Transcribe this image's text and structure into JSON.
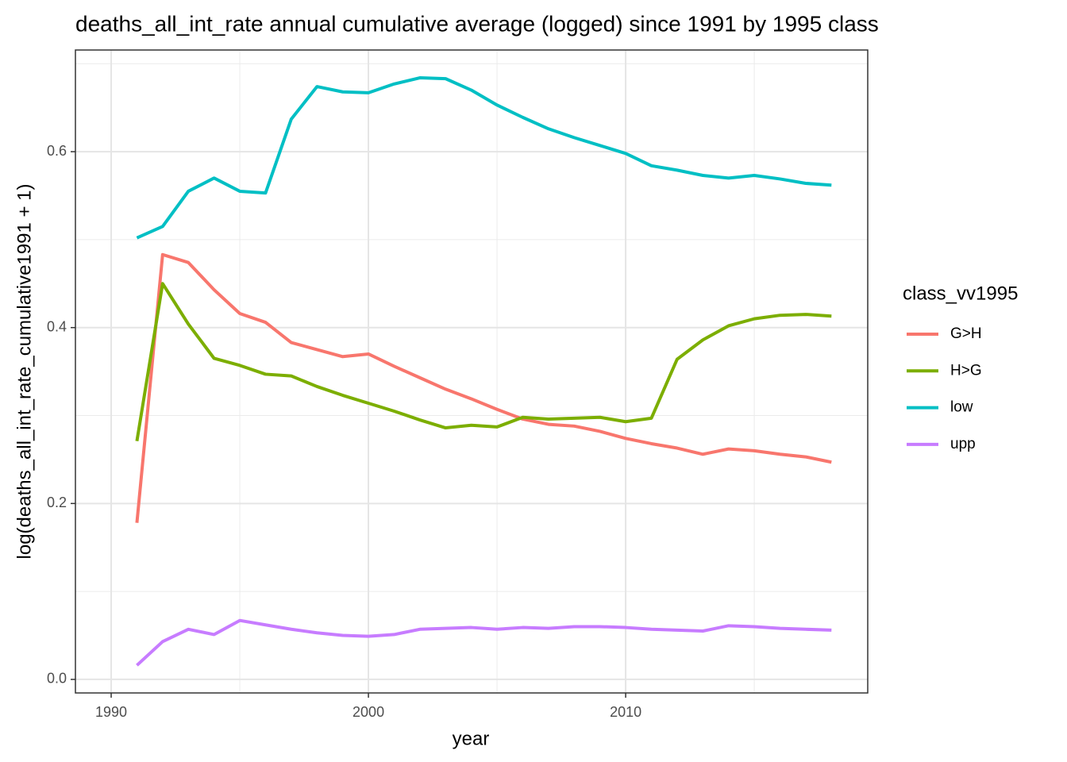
{
  "chart_data": {
    "type": "line",
    "title": "deaths_all_int_rate annual cumulative average (logged) since 1991 by 1995 class",
    "x_label": "year",
    "y_label": "log(deaths_all_int_rate_cumulative1991 + 1)",
    "legend_title": "class_vv1995",
    "legend_position": "right",
    "x": [
      1991,
      1992,
      1993,
      1994,
      1995,
      1996,
      1997,
      1998,
      1999,
      2000,
      2001,
      2002,
      2003,
      2004,
      2005,
      2006,
      2007,
      2008,
      2009,
      2010,
      2011,
      2012,
      2013,
      2014,
      2015,
      2016,
      2017,
      2018
    ],
    "series": [
      {
        "name": "G>H",
        "color": "#F8766D",
        "values": [
          0.178,
          0.483,
          0.474,
          0.443,
          0.416,
          0.406,
          0.383,
          0.375,
          0.367,
          0.37,
          0.356,
          0.343,
          0.33,
          0.319,
          0.307,
          0.296,
          0.29,
          0.288,
          0.282,
          0.274,
          0.268,
          0.263,
          0.256,
          0.262,
          0.26,
          0.256,
          0.253,
          0.247
        ]
      },
      {
        "name": "H>G",
        "color": "#7CAE00",
        "values": [
          0.271,
          0.45,
          0.404,
          0.365,
          0.357,
          0.347,
          0.345,
          0.333,
          0.323,
          0.314,
          0.305,
          0.295,
          0.286,
          0.289,
          0.287,
          0.298,
          0.296,
          0.297,
          0.298,
          0.293,
          0.297,
          0.364,
          0.386,
          0.402,
          0.41,
          0.414,
          0.415,
          0.413
        ]
      },
      {
        "name": "low",
        "color": "#00BFC4",
        "values": [
          0.502,
          0.515,
          0.555,
          0.57,
          0.555,
          0.553,
          0.637,
          0.674,
          0.668,
          0.667,
          0.677,
          0.684,
          0.683,
          0.67,
          0.653,
          0.639,
          0.626,
          0.616,
          0.607,
          0.598,
          0.584,
          0.579,
          0.573,
          0.57,
          0.573,
          0.569,
          0.564,
          0.562
        ]
      },
      {
        "name": "upp",
        "color": "#C77CFF",
        "values": [
          0.016,
          0.043,
          0.057,
          0.051,
          0.067,
          0.062,
          0.057,
          0.053,
          0.05,
          0.049,
          0.051,
          0.057,
          0.058,
          0.059,
          0.057,
          0.059,
          0.058,
          0.06,
          0.06,
          0.059,
          0.057,
          0.056,
          0.055,
          0.061,
          0.06,
          0.058,
          0.057,
          0.056
        ]
      }
    ],
    "xlim": [
      1988.61,
      2019.41
    ],
    "ylim": [
      -0.0154,
      0.7156
    ],
    "xticks": [
      1990,
      2000,
      2010
    ],
    "yticks": [
      {
        "value": 0,
        "label": "0.0"
      },
      0.2,
      0.4,
      0.6
    ],
    "minor_xticks": [
      1995,
      2005,
      2015
    ],
    "minor_yticks": [
      0.1,
      0.3,
      0.5,
      0.7
    ],
    "grid": true
  }
}
